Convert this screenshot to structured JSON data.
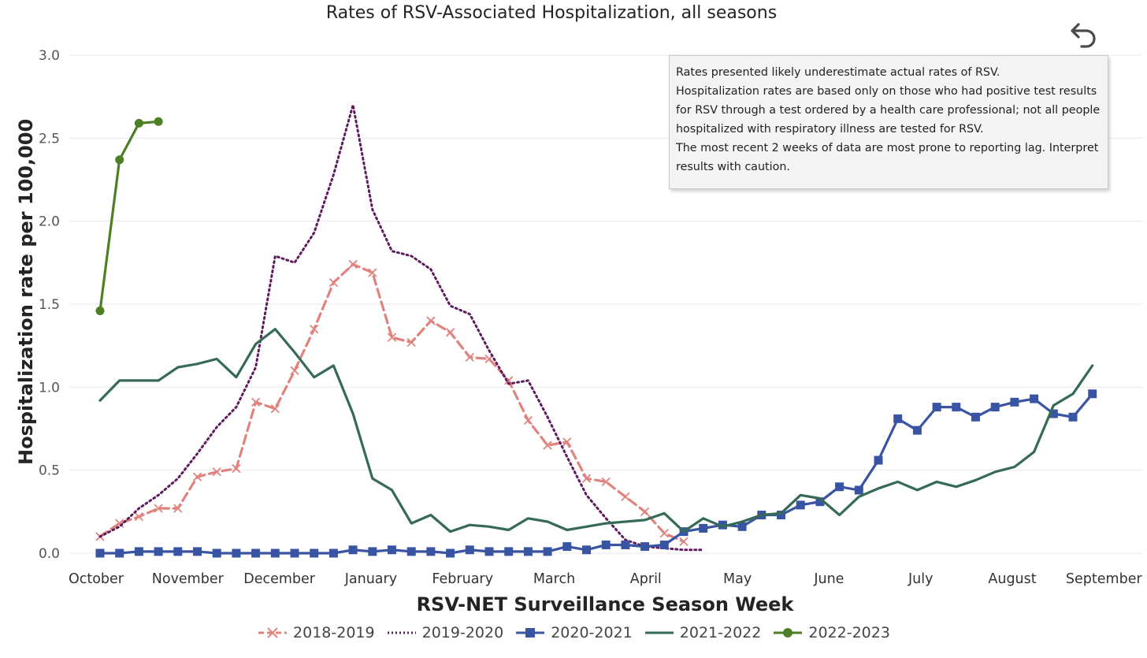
{
  "title": "Rates of RSV-Associated Hospitalization, all seasons",
  "back_icon": "undo-arrow-icon",
  "note_lines": [
    "Rates presented likely underestimate actual rates of RSV.",
    "Hospitalization rates are based only on those who had positive test results",
    "for RSV through a test ordered by a health care professional; not all people",
    "hospitalized with respiratory illness are tested for RSV.",
    "The most recent 2 weeks of data are most prone to reporting lag. Interpret",
    "results with caution."
  ],
  "chart_data": {
    "type": "line",
    "title": "Rates of RSV-Associated Hospitalization, all seasons",
    "xlabel": "RSV-NET Surveillance Season Week",
    "ylabel": "Hospitalization rate per 100,000",
    "x_ticks": [
      "October",
      "November",
      "December",
      "January",
      "February",
      "March",
      "April",
      "May",
      "June",
      "July",
      "August",
      "September"
    ],
    "ylim": [
      0,
      3.0
    ],
    "y_ticks": [
      "0.0",
      "0.5",
      "1.0",
      "1.5",
      "2.0",
      "2.5",
      "3.0"
    ],
    "grid": true,
    "legend": "bottom",
    "series": [
      {
        "name": "2018-2019",
        "color": "#e0837f",
        "style": "dashed",
        "marker": "x",
        "values": [
          0.1,
          0.18,
          0.22,
          0.27,
          0.27,
          0.46,
          0.49,
          0.51,
          0.91,
          0.87,
          1.1,
          1.35,
          1.63,
          1.74,
          1.69,
          1.3,
          1.27,
          1.4,
          1.33,
          1.18,
          1.17,
          1.04,
          0.8,
          0.65,
          0.67,
          0.45,
          0.43,
          0.34,
          0.25,
          0.12,
          0.07
        ]
      },
      {
        "name": "2019-2020",
        "color": "#5e1b5e",
        "style": "dotted",
        "marker": "none",
        "values": [
          0.1,
          0.16,
          0.27,
          0.35,
          0.45,
          0.6,
          0.76,
          0.88,
          1.12,
          1.79,
          1.75,
          1.93,
          2.28,
          2.7,
          2.07,
          1.82,
          1.79,
          1.71,
          1.49,
          1.44,
          1.22,
          1.02,
          1.04,
          0.82,
          0.58,
          0.35,
          0.21,
          0.08,
          0.04,
          0.03,
          0.02,
          0.02
        ]
      },
      {
        "name": "2020-2021",
        "color": "#3a54a4",
        "style": "solid",
        "marker": "square",
        "values": [
          0.0,
          0.0,
          0.01,
          0.01,
          0.01,
          0.01,
          0.0,
          0.0,
          0.0,
          0.0,
          0.0,
          0.0,
          0.0,
          0.02,
          0.01,
          0.02,
          0.01,
          0.01,
          0.0,
          0.02,
          0.01,
          0.01,
          0.01,
          0.01,
          0.04,
          0.02,
          0.05,
          0.05,
          0.04,
          0.05,
          0.13,
          0.15,
          0.17,
          0.16,
          0.23,
          0.23,
          0.29,
          0.31,
          0.4,
          0.38,
          0.56,
          0.81,
          0.74,
          0.88,
          0.88,
          0.82,
          0.88,
          0.91,
          0.93,
          0.84,
          0.82,
          0.96
        ]
      },
      {
        "name": "2021-2022",
        "color": "#356b54",
        "style": "solid",
        "marker": "none",
        "values": [
          0.92,
          1.04,
          1.04,
          1.04,
          1.12,
          1.14,
          1.17,
          1.06,
          1.26,
          1.35,
          1.21,
          1.06,
          1.13,
          0.84,
          0.45,
          0.38,
          0.18,
          0.23,
          0.13,
          0.17,
          0.16,
          0.14,
          0.21,
          0.19,
          0.14,
          0.16,
          0.18,
          0.19,
          0.2,
          0.24,
          0.13,
          0.21,
          0.16,
          0.19,
          0.23,
          0.24,
          0.35,
          0.33,
          0.23,
          0.34,
          0.39,
          0.43,
          0.38,
          0.43,
          0.4,
          0.44,
          0.49,
          0.52,
          0.61,
          0.89,
          0.96,
          1.13
        ]
      },
      {
        "name": "2022-2023",
        "color": "#4e7f25",
        "style": "solid",
        "marker": "circle",
        "values": [
          1.46,
          2.37,
          2.59,
          2.6
        ]
      }
    ]
  }
}
